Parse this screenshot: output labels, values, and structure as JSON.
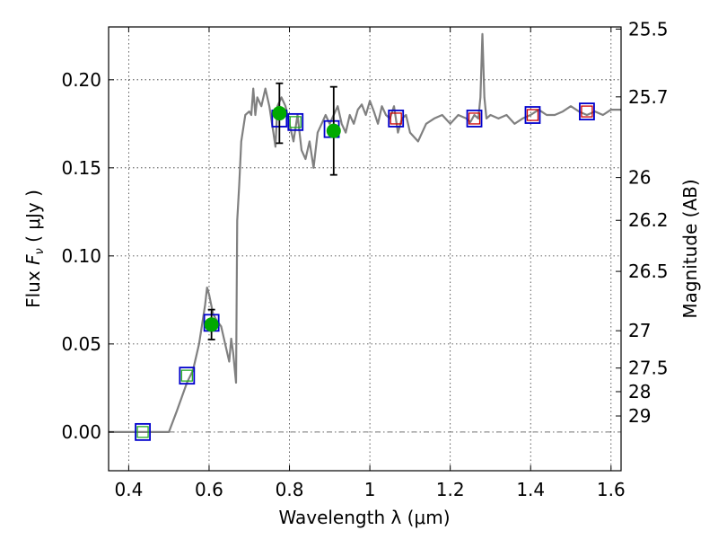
{
  "chart_data": {
    "type": "scatter",
    "xlabel": "Wavelength  λ (μm)",
    "ylabel_prefix": "Flux  ",
    "ylabel_symbol": "F",
    "ylabel_subscript": "ν",
    "ylabel_unit": "  ( μJy )",
    "y2label": "Magnitude (AB)",
    "xlim": [
      0.35,
      1.625
    ],
    "ylim": [
      -0.022,
      0.23
    ],
    "x_ticks": [
      0.4,
      0.6,
      0.8,
      1.0,
      1.2,
      1.4,
      1.6
    ],
    "x_tick_labels": [
      "0.4",
      "0.6",
      "0.8",
      "1",
      "1.2",
      "1.4",
      "1.6"
    ],
    "y_ticks": [
      0.0,
      0.05,
      0.1,
      0.15,
      0.2
    ],
    "y_tick_labels": [
      "0.00",
      "0.05",
      "0.10",
      "0.15",
      "0.20"
    ],
    "y2_ticks": [
      {
        "label": "25.5",
        "flux": 0.2288
      },
      {
        "label": "25.7",
        "flux": 0.1903
      },
      {
        "label": "26",
        "flux": 0.1445
      },
      {
        "label": "26.2",
        "flux": 0.1202
      },
      {
        "label": "26.5",
        "flux": 0.0912
      },
      {
        "label": "27",
        "flux": 0.0575
      },
      {
        "label": "27.5",
        "flux": 0.0363
      },
      {
        "label": "28",
        "flux": 0.0229
      },
      {
        "label": "29",
        "flux": 0.0091
      }
    ],
    "grid": true,
    "zero_line": 0.0,
    "colors": {
      "spectrum": "#808080",
      "observed_box": "#0000cc",
      "model_green": "#22aa22",
      "model_red": "#cc0000",
      "detection": "#00aa00",
      "errorbar": "#000000"
    },
    "series": [
      {
        "name": "model spectrum",
        "style": "line",
        "points": [
          [
            0.35,
            0.0
          ],
          [
            0.4,
            0.0
          ],
          [
            0.45,
            0.0
          ],
          [
            0.49,
            0.0
          ],
          [
            0.5,
            0.0
          ],
          [
            0.52,
            0.012
          ],
          [
            0.545,
            0.028
          ],
          [
            0.56,
            0.035
          ],
          [
            0.575,
            0.05
          ],
          [
            0.59,
            0.072
          ],
          [
            0.595,
            0.082
          ],
          [
            0.6,
            0.078
          ],
          [
            0.61,
            0.067
          ],
          [
            0.62,
            0.063
          ],
          [
            0.63,
            0.06
          ],
          [
            0.64,
            0.05
          ],
          [
            0.65,
            0.04
          ],
          [
            0.655,
            0.053
          ],
          [
            0.66,
            0.045
          ],
          [
            0.667,
            0.028
          ],
          [
            0.67,
            0.12
          ],
          [
            0.675,
            0.14
          ],
          [
            0.68,
            0.165
          ],
          [
            0.69,
            0.18
          ],
          [
            0.7,
            0.182
          ],
          [
            0.705,
            0.18
          ],
          [
            0.71,
            0.195
          ],
          [
            0.715,
            0.18
          ],
          [
            0.72,
            0.19
          ],
          [
            0.73,
            0.185
          ],
          [
            0.74,
            0.195
          ],
          [
            0.75,
            0.185
          ],
          [
            0.76,
            0.17
          ],
          [
            0.765,
            0.162
          ],
          [
            0.77,
            0.185
          ],
          [
            0.78,
            0.19
          ],
          [
            0.79,
            0.185
          ],
          [
            0.8,
            0.175
          ],
          [
            0.81,
            0.165
          ],
          [
            0.82,
            0.18
          ],
          [
            0.83,
            0.16
          ],
          [
            0.84,
            0.155
          ],
          [
            0.85,
            0.165
          ],
          [
            0.86,
            0.15
          ],
          [
            0.87,
            0.17
          ],
          [
            0.88,
            0.175
          ],
          [
            0.89,
            0.18
          ],
          [
            0.9,
            0.175
          ],
          [
            0.91,
            0.18
          ],
          [
            0.92,
            0.185
          ],
          [
            0.93,
            0.175
          ],
          [
            0.94,
            0.17
          ],
          [
            0.95,
            0.18
          ],
          [
            0.96,
            0.175
          ],
          [
            0.97,
            0.183
          ],
          [
            0.98,
            0.186
          ],
          [
            0.99,
            0.18
          ],
          [
            1.0,
            0.188
          ],
          [
            1.01,
            0.182
          ],
          [
            1.02,
            0.175
          ],
          [
            1.03,
            0.185
          ],
          [
            1.04,
            0.18
          ],
          [
            1.05,
            0.178
          ],
          [
            1.06,
            0.185
          ],
          [
            1.07,
            0.17
          ],
          [
            1.08,
            0.178
          ],
          [
            1.09,
            0.18
          ],
          [
            1.1,
            0.17
          ],
          [
            1.12,
            0.165
          ],
          [
            1.14,
            0.175
          ],
          [
            1.16,
            0.178
          ],
          [
            1.18,
            0.18
          ],
          [
            1.2,
            0.175
          ],
          [
            1.22,
            0.18
          ],
          [
            1.24,
            0.178
          ],
          [
            1.25,
            0.176
          ],
          [
            1.26,
            0.18
          ],
          [
            1.27,
            0.178
          ],
          [
            1.275,
            0.19
          ],
          [
            1.28,
            0.226
          ],
          [
            1.285,
            0.19
          ],
          [
            1.29,
            0.178
          ],
          [
            1.3,
            0.18
          ],
          [
            1.32,
            0.178
          ],
          [
            1.34,
            0.18
          ],
          [
            1.36,
            0.175
          ],
          [
            1.38,
            0.178
          ],
          [
            1.4,
            0.18
          ],
          [
            1.42,
            0.183
          ],
          [
            1.44,
            0.18
          ],
          [
            1.46,
            0.18
          ],
          [
            1.48,
            0.182
          ],
          [
            1.5,
            0.185
          ],
          [
            1.52,
            0.182
          ],
          [
            1.54,
            0.18
          ],
          [
            1.56,
            0.182
          ],
          [
            1.58,
            0.18
          ],
          [
            1.6,
            0.183
          ],
          [
            1.625,
            0.183
          ]
        ]
      },
      {
        "name": "observed bands",
        "style": "open-square",
        "points": [
          [
            0.435,
            0.0
          ],
          [
            0.545,
            0.032
          ],
          [
            0.606,
            0.062
          ],
          [
            0.775,
            0.178
          ],
          [
            0.815,
            0.176
          ],
          [
            0.905,
            0.172
          ],
          [
            1.065,
            0.178
          ],
          [
            1.26,
            0.178
          ],
          [
            1.405,
            0.18
          ],
          [
            1.54,
            0.182
          ]
        ]
      },
      {
        "name": "model band fluxes (green)",
        "style": "small-square",
        "points": [
          [
            0.435,
            0.0
          ],
          [
            0.545,
            0.032
          ],
          [
            0.815,
            0.176
          ]
        ]
      },
      {
        "name": "model band fluxes (red)",
        "style": "small-square",
        "points": [
          [
            1.065,
            0.178
          ],
          [
            1.26,
            0.178
          ],
          [
            1.405,
            0.18
          ],
          [
            1.54,
            0.182
          ]
        ]
      },
      {
        "name": "detections",
        "style": "filled-circle",
        "points": [
          [
            0.606,
            0.061
          ],
          [
            0.775,
            0.181
          ],
          [
            0.91,
            0.171
          ]
        ],
        "errors": [
          0.0085,
          0.017,
          0.025
        ]
      }
    ]
  }
}
